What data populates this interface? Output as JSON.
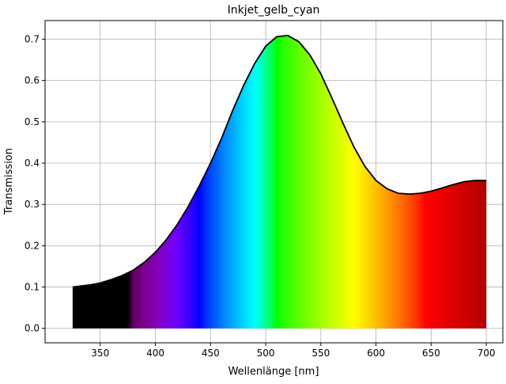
{
  "chart_data": {
    "type": "area",
    "title": "Inkjet_gelb_cyan",
    "xlabel": "Wellenlänge [nm]",
    "ylabel": "Transmission",
    "xlim": [
      300,
      715
    ],
    "ylim": [
      -0.035,
      0.745
    ],
    "grid": true,
    "fill": "visible-spectrum-colors",
    "x_ticks": [
      350,
      400,
      450,
      500,
      550,
      600,
      650,
      700
    ],
    "y_ticks": [
      0.0,
      0.1,
      0.2,
      0.3,
      0.4,
      0.5,
      0.6,
      0.7
    ],
    "y_tick_labels": [
      "0.0",
      "0.1",
      "0.2",
      "0.3",
      "0.4",
      "0.5",
      "0.6",
      "0.7"
    ],
    "series": [
      {
        "x": [
          325,
          340,
          350,
          360,
          370,
          380,
          390,
          400,
          410,
          420,
          430,
          440,
          450,
          460,
          470,
          480,
          490,
          500,
          510,
          520,
          530,
          540,
          550,
          560,
          570,
          580,
          590,
          600,
          610,
          620,
          630,
          640,
          650,
          660,
          670,
          680,
          690,
          700
        ],
        "values": [
          0.1,
          0.105,
          0.11,
          0.118,
          0.128,
          0.141,
          0.16,
          0.184,
          0.215,
          0.252,
          0.296,
          0.346,
          0.4,
          0.46,
          0.527,
          0.588,
          0.641,
          0.683,
          0.706,
          0.709,
          0.694,
          0.662,
          0.616,
          0.558,
          0.497,
          0.439,
          0.392,
          0.358,
          0.338,
          0.327,
          0.325,
          0.327,
          0.332,
          0.34,
          0.348,
          0.355,
          0.358,
          0.358
        ]
      }
    ]
  }
}
